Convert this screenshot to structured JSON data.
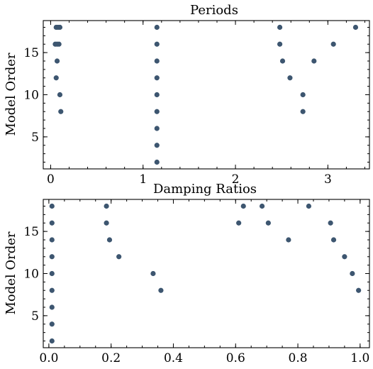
{
  "chart_data": [
    {
      "type": "scatter",
      "title": "Periods",
      "xlabel": "",
      "ylabel": "Model Order",
      "xlim": [
        -0.08,
        3.45
      ],
      "ylim": [
        1.2,
        18.8
      ],
      "xticks": [
        0,
        1,
        2,
        3
      ],
      "yticks": [
        5,
        10,
        15
      ],
      "xminor": 0.2,
      "yminor": 1,
      "marker_color": "#3d5670",
      "points": [
        {
          "x": 0.06,
          "y": 18
        },
        {
          "x": 0.08,
          "y": 18
        },
        {
          "x": 0.1,
          "y": 18
        },
        {
          "x": 0.05,
          "y": 16
        },
        {
          "x": 0.07,
          "y": 16
        },
        {
          "x": 0.09,
          "y": 16
        },
        {
          "x": 0.07,
          "y": 14
        },
        {
          "x": 0.06,
          "y": 12
        },
        {
          "x": 0.1,
          "y": 10
        },
        {
          "x": 0.11,
          "y": 8
        },
        {
          "x": 1.15,
          "y": 18
        },
        {
          "x": 1.15,
          "y": 16
        },
        {
          "x": 1.15,
          "y": 14
        },
        {
          "x": 1.15,
          "y": 12
        },
        {
          "x": 1.15,
          "y": 10
        },
        {
          "x": 1.15,
          "y": 8
        },
        {
          "x": 1.15,
          "y": 6
        },
        {
          "x": 1.15,
          "y": 4
        },
        {
          "x": 1.15,
          "y": 2
        },
        {
          "x": 2.48,
          "y": 18
        },
        {
          "x": 2.48,
          "y": 16
        },
        {
          "x": 2.51,
          "y": 14
        },
        {
          "x": 2.59,
          "y": 12
        },
        {
          "x": 2.73,
          "y": 10
        },
        {
          "x": 2.73,
          "y": 8
        },
        {
          "x": 2.85,
          "y": 14
        },
        {
          "x": 3.06,
          "y": 16
        },
        {
          "x": 3.3,
          "y": 18
        }
      ]
    },
    {
      "type": "scatter",
      "title": "Damping Ratios",
      "xlabel": "",
      "ylabel": "Model Order",
      "xlim": [
        -0.018,
        1.03
      ],
      "ylim": [
        1.2,
        18.8
      ],
      "xticks": [
        0.0,
        0.2,
        0.4,
        0.6,
        0.8,
        1.0
      ],
      "yticks": [
        5,
        10,
        15
      ],
      "xminor": 0.05,
      "yminor": 1,
      "marker_color": "#3d5670",
      "points": [
        {
          "x": 0.01,
          "y": 18
        },
        {
          "x": 0.01,
          "y": 16
        },
        {
          "x": 0.01,
          "y": 14
        },
        {
          "x": 0.01,
          "y": 12
        },
        {
          "x": 0.01,
          "y": 10
        },
        {
          "x": 0.01,
          "y": 8
        },
        {
          "x": 0.01,
          "y": 6
        },
        {
          "x": 0.01,
          "y": 4
        },
        {
          "x": 0.01,
          "y": 2
        },
        {
          "x": 0.185,
          "y": 18
        },
        {
          "x": 0.185,
          "y": 16
        },
        {
          "x": 0.195,
          "y": 14
        },
        {
          "x": 0.225,
          "y": 12
        },
        {
          "x": 0.335,
          "y": 10
        },
        {
          "x": 0.36,
          "y": 8
        },
        {
          "x": 0.61,
          "y": 16
        },
        {
          "x": 0.625,
          "y": 18
        },
        {
          "x": 0.685,
          "y": 18
        },
        {
          "x": 0.705,
          "y": 16
        },
        {
          "x": 0.77,
          "y": 14
        },
        {
          "x": 0.835,
          "y": 18
        },
        {
          "x": 0.905,
          "y": 16
        },
        {
          "x": 0.915,
          "y": 14
        },
        {
          "x": 0.95,
          "y": 12
        },
        {
          "x": 0.975,
          "y": 10
        },
        {
          "x": 0.995,
          "y": 8
        }
      ]
    }
  ]
}
